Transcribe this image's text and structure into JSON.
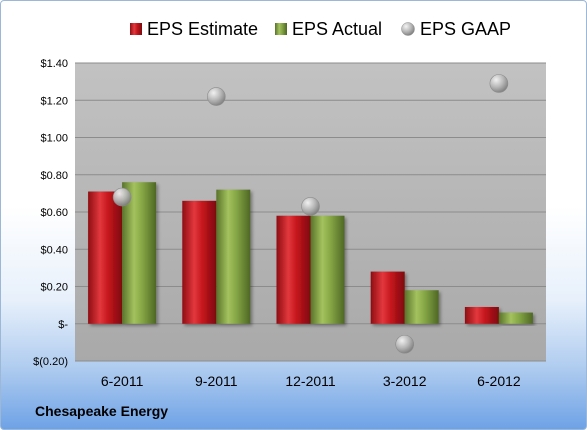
{
  "company": "Chesapeake Energy",
  "colors": {
    "estimate": "#c4151c",
    "actual": "#7a9a3a",
    "gaap": "#a8a8a8",
    "plot_background": "#b8b8b8"
  },
  "chart_data": {
    "type": "bar",
    "categories": [
      "6-2011",
      "9-2011",
      "12-2011",
      "3-2012",
      "6-2012"
    ],
    "series": [
      {
        "name": "EPS Estimate",
        "kind": "bar",
        "values": [
          0.71,
          0.66,
          0.58,
          0.28,
          0.09
        ]
      },
      {
        "name": "EPS Actual",
        "kind": "bar",
        "values": [
          0.76,
          0.72,
          0.58,
          0.18,
          0.06
        ]
      },
      {
        "name": "EPS GAAP",
        "kind": "scatter",
        "values": [
          0.68,
          1.22,
          0.63,
          -0.11,
          1.29
        ]
      }
    ],
    "yticks": [
      {
        "value": -0.2,
        "label": "$(0.20)"
      },
      {
        "value": 0,
        "label": "$-"
      },
      {
        "value": 0.2,
        "label": "$0.20"
      },
      {
        "value": 0.4,
        "label": "$0.40"
      },
      {
        "value": 0.6,
        "label": "$0.60"
      },
      {
        "value": 0.8,
        "label": "$0.80"
      },
      {
        "value": 1.0,
        "label": "$1.00"
      },
      {
        "value": 1.2,
        "label": "$1.20"
      },
      {
        "value": 1.4,
        "label": "$1.40"
      }
    ],
    "ylim": [
      -0.2,
      1.4
    ],
    "grid": true,
    "legend_position": "top",
    "title": "",
    "xlabel": "",
    "ylabel": ""
  }
}
